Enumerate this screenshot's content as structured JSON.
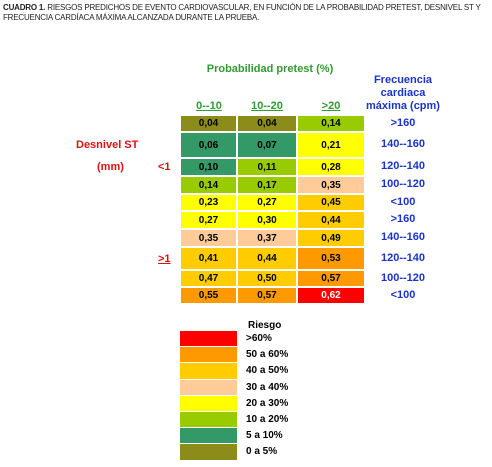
{
  "caption": {
    "label": "CUADRO 1.",
    "text": "RIESGOS PREDICHOS DE EVENTO CARDIOVASCULAR, EN FUNCIÓN DE LA PROBABILIDAD PRETEST, DESNIVEL ST Y FRECUENCIA CARDÍACA MÁXIMA ALCANZADA DURANTE LA PRUEBA."
  },
  "table": {
    "column_group": "Probabilidad pretest (%)",
    "columns": [
      "0--10",
      "10--20",
      ">20"
    ],
    "frequency_header": "Frecuencia cardiaca máxima (cpm)",
    "row_header": "Desnivel ST",
    "row_unit": "(mm)",
    "row_groups": [
      "<1",
      ">1"
    ],
    "rows": [
      {
        "cells": [
          "0,04",
          "0,04",
          "0,14"
        ],
        "frequency": ">160"
      },
      {
        "cells": [
          "0,06",
          "0,07",
          "0,21"
        ],
        "frequency": "140--160"
      },
      {
        "cells": [
          "0,10",
          "0,11",
          "0,28"
        ],
        "frequency": "120--140"
      },
      {
        "cells": [
          "0,14",
          "0,17",
          "0,35"
        ],
        "frequency": "100--120"
      },
      {
        "cells": [
          "0,23",
          "0,27",
          "0,45"
        ],
        "frequency": "<100"
      },
      {
        "cells": [
          "0,27",
          "0,30",
          "0,44"
        ],
        "frequency": ">160"
      },
      {
        "cells": [
          "0,35",
          "0,37",
          "0,49"
        ],
        "frequency": "140--160"
      },
      {
        "cells": [
          "0,41",
          "0,44",
          "0,53"
        ],
        "frequency": "120--140"
      },
      {
        "cells": [
          "0,47",
          "0,50",
          "0,57"
        ],
        "frequency": "100--120"
      },
      {
        "cells": [
          "0,55",
          "0,57",
          "0,62"
        ],
        "frequency": "<100"
      }
    ]
  },
  "legend": {
    "title": "Riesgo",
    "items": [
      ">60%",
      "50 a 60%",
      "40 a 50%",
      "30 a 40%",
      "20 a 30%",
      "10 a 20%",
      "5 a 10%",
      "0 a 5%"
    ]
  }
}
